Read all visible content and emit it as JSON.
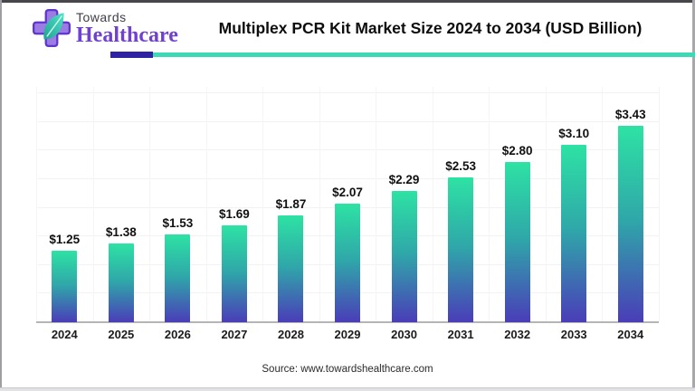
{
  "header": {
    "logo_line1": "Towards",
    "logo_line2": "Healthcare",
    "title": "Multiplex PCR Kit Market Size 2024 to 2034 (USD Billion)"
  },
  "brand_colors": {
    "logo_purple": "#7040cf",
    "rule_purple": "#2f22a3",
    "rule_teal": "#3dd9b5",
    "bar_top": "#2ee2a4",
    "bar_mid": "#2fa7a9",
    "bar_bottom": "#4a3db8"
  },
  "chart_data": {
    "type": "bar",
    "title": "Multiplex PCR Kit Market Size 2024 to 2034 (USD Billion)",
    "categories": [
      "2024",
      "2025",
      "2026",
      "2027",
      "2028",
      "2029",
      "2030",
      "2031",
      "2032",
      "2033",
      "2034"
    ],
    "values": [
      1.25,
      1.38,
      1.53,
      1.69,
      1.87,
      2.07,
      2.29,
      2.53,
      2.8,
      3.1,
      3.43
    ],
    "value_labels": [
      "$1.25",
      "$1.38",
      "$1.53",
      "$1.69",
      "$1.87",
      "$2.07",
      "$2.29",
      "$2.53",
      "$2.80",
      "$3.10",
      "$3.43"
    ],
    "xlabel": "",
    "ylabel": "",
    "ylim": [
      0,
      4.0
    ],
    "grid": "faint horizontal lines every 0.5, faint vertical column separators, legend none",
    "bar_gradient": [
      "#2ee2a4",
      "#4a3db8"
    ]
  },
  "footer": {
    "source": "Source: www.towardshealthcare.com"
  }
}
